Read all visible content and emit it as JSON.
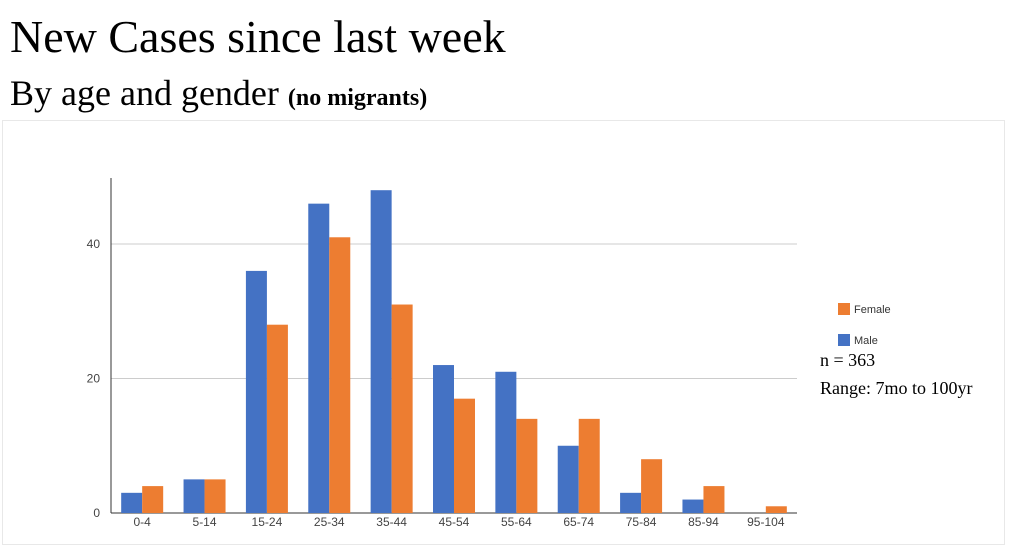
{
  "header": {
    "title": "New Cases since last week",
    "subtitle": "By age and gender",
    "subtitle_note": "(no migrants)"
  },
  "annotations": {
    "n": "n = 363",
    "range": "Range: 7mo to 100yr"
  },
  "chart_data": {
    "type": "bar",
    "categories": [
      "0-4",
      "5-14",
      "15-24",
      "25-34",
      "35-44",
      "45-54",
      "55-64",
      "65-74",
      "75-84",
      "85-94",
      "95-104"
    ],
    "series": [
      {
        "name": "Male",
        "color": "#4472c4",
        "values": [
          3,
          5,
          36,
          46,
          48,
          22,
          21,
          10,
          3,
          2,
          0
        ]
      },
      {
        "name": "Female",
        "color": "#ed7d31",
        "values": [
          4,
          5,
          28,
          41,
          31,
          17,
          14,
          14,
          8,
          4,
          1
        ]
      }
    ],
    "ylim": [
      0,
      50
    ],
    "yticks": [
      0,
      20,
      40
    ],
    "grid": true,
    "legend": "right",
    "legend_order": [
      "Female",
      "Male"
    ]
  }
}
